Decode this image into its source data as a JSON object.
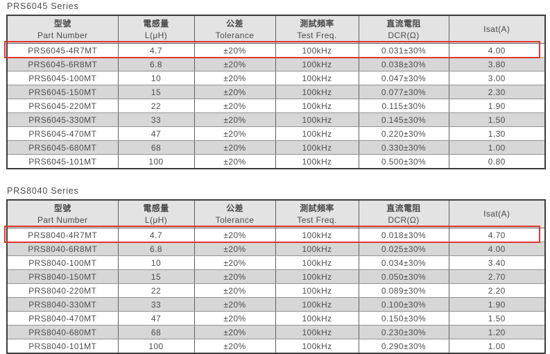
{
  "colors": {
    "header_bg": "#e3e3e3",
    "row_alt_bg": "#d7d7d7",
    "row_bg": "#ffffff",
    "text": "#4d4d4d",
    "table_border": "#3c3c3c",
    "highlight_red": "#de362d"
  },
  "columns": [
    {
      "zh": "型號",
      "en": "Part Number"
    },
    {
      "zh": "電感量",
      "en": "L(μH)"
    },
    {
      "zh": "公差",
      "en": "Tolerance"
    },
    {
      "zh": "測試頻率",
      "en": "Test Freq."
    },
    {
      "zh": "直流電阻",
      "en": "DCR(Ω)"
    },
    {
      "zh": "",
      "en": "Isat(A)"
    }
  ],
  "tables": [
    {
      "title": "PRS6045 Series",
      "highlight_row": 0,
      "rows": [
        [
          "PRS6045-4R7MT",
          "4.7",
          "±20%",
          "100kHz",
          "0.031±30%",
          "4.00"
        ],
        [
          "PRS6045-6R8MT",
          "6.8",
          "±20%",
          "100kHz",
          "0.038±30%",
          "3.80"
        ],
        [
          "PRS6045-100MT",
          "10",
          "±20%",
          "100kHz",
          "0.047±30%",
          "3.00"
        ],
        [
          "PRS6045-150MT",
          "15",
          "±20%",
          "100kHz",
          "0.077±30%",
          "2.30"
        ],
        [
          "PRS6045-220MT",
          "22",
          "±20%",
          "100kHz",
          "0.115±30%",
          "1.90"
        ],
        [
          "PRS6045-330MT",
          "33",
          "±20%",
          "100kHz",
          "0.145±30%",
          "1.50"
        ],
        [
          "PRS6045-470MT",
          "47",
          "±20%",
          "100kHz",
          "0.220±30%",
          "1.30"
        ],
        [
          "PRS6045-680MT",
          "68",
          "±20%",
          "100kHz",
          "0.330±30%",
          "1.00"
        ],
        [
          "PRS6045-101MT",
          "100",
          "±20%",
          "100kHz",
          "0.500±30%",
          "0.80"
        ]
      ]
    },
    {
      "title": "PRS8040 Series",
      "highlight_row": 0,
      "rows": [
        [
          "PRS8040-4R7MT",
          "4.7",
          "±20%",
          "100kHz",
          "0.018±30%",
          "4.70"
        ],
        [
          "PRS8040-6R8MT",
          "6.8",
          "±20%",
          "100kHz",
          "0.025±30%",
          "4.00"
        ],
        [
          "PRS8040-100MT",
          "10",
          "±20%",
          "100kHz",
          "0.034±30%",
          "3.40"
        ],
        [
          "PRS8040-150MT",
          "15",
          "±20%",
          "100kHz",
          "0.050±30%",
          "2.70"
        ],
        [
          "PRS8040-220MT",
          "22",
          "±20%",
          "100kHz",
          "0.089±30%",
          "2.20"
        ],
        [
          "PRS8040-330MT",
          "33",
          "±20%",
          "100kHz",
          "0.100±30%",
          "1.90"
        ],
        [
          "PRS8040-470MT",
          "47",
          "±20%",
          "100kHz",
          "0.150±30%",
          "1.50"
        ],
        [
          "PRS8040-680MT",
          "68",
          "±20%",
          "100kHz",
          "0.230±30%",
          "1.20"
        ],
        [
          "PRS8040-101MT",
          "100",
          "±20%",
          "100kHz",
          "0.290±30%",
          "1.00"
        ]
      ]
    }
  ]
}
